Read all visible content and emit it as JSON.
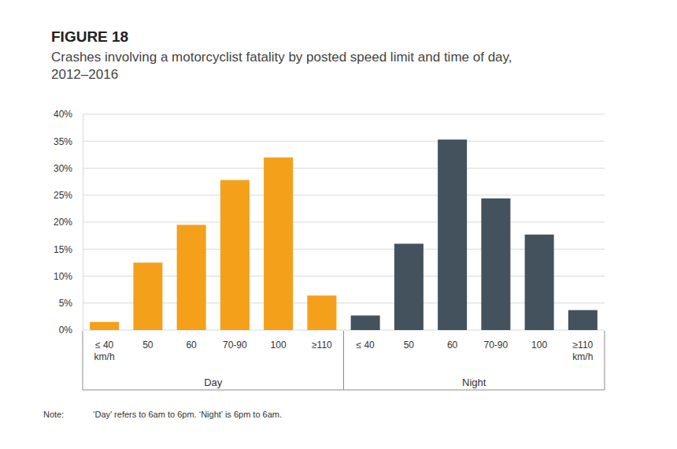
{
  "chart_data": {
    "type": "bar",
    "title": "FIGURE 18",
    "subtitle": "Crashes involving a motorcyclist fatality by posted speed limit and time of day,\n2012–2016",
    "series": [
      {
        "name": "Day",
        "color": "#f5a01a",
        "categories": [
          "≤ 40\nkm/h",
          "50",
          "60",
          "70-90",
          "100",
          "≥110"
        ],
        "values": [
          1.5,
          12.5,
          19.5,
          27.8,
          32,
          6.4
        ]
      },
      {
        "name": "Night",
        "color": "#44525e",
        "categories": [
          "≤ 40",
          "50",
          "60",
          "70-90",
          "100",
          "≥110\nkm/h"
        ],
        "values": [
          2.7,
          16,
          35.3,
          24.4,
          17.7,
          3.7
        ]
      }
    ],
    "ylim": [
      0,
      40
    ],
    "yticks": [
      {
        "value": 0,
        "label": "0%"
      },
      {
        "value": 5,
        "label": "5%"
      },
      {
        "value": 10,
        "label": "10%"
      },
      {
        "value": 15,
        "label": "15%"
      },
      {
        "value": 20,
        "label": "20%"
      },
      {
        "value": 25,
        "label": "25%"
      },
      {
        "value": 30,
        "label": "30%"
      },
      {
        "value": 35,
        "label": "35%"
      },
      {
        "value": 40,
        "label": "40%"
      }
    ],
    "grid": true,
    "note_label": "Note:",
    "note": "‘Day’ refers to 6am to 6pm. ‘Night’ is 6pm to 6am."
  }
}
